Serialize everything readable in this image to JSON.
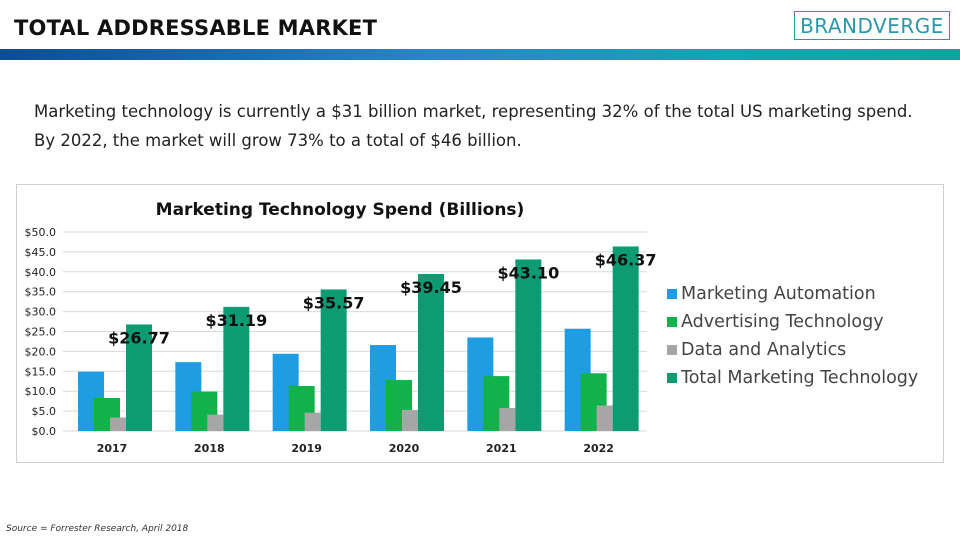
{
  "header": {
    "title": "TOTAL ADDRESSABLE MARKET",
    "logo_text": "BRANDVERGE",
    "accent_color": "#12a39d"
  },
  "summary": "Marketing technology is currently a $31 billion market, representing 32% of the total US marketing spend. By 2022, the market will grow 73% to a total of $46 billion.",
  "source": "Source = Forrester Research, April 2018",
  "chart_data": {
    "type": "bar",
    "title": "Marketing Technology Spend (Billions)",
    "xlabel": "",
    "ylabel": "",
    "categories": [
      "2017",
      "2018",
      "2019",
      "2020",
      "2021",
      "2022"
    ],
    "ylim": [
      0,
      50
    ],
    "yticks": [
      "$0.0",
      "$5.0",
      "$10.0",
      "$15.0",
      "$20.0",
      "$25.0",
      "$30.0",
      "$35.0",
      "$40.0",
      "$45.0",
      "$50.0"
    ],
    "grid": true,
    "legend_position": "right",
    "series": [
      {
        "name": "Marketing Automation",
        "color": "#1f9de2",
        "values": [
          14.9,
          17.3,
          19.4,
          21.6,
          23.5,
          25.7
        ]
      },
      {
        "name": "Advertising Technology",
        "color": "#12b24b",
        "values": [
          8.3,
          9.9,
          11.3,
          12.8,
          13.8,
          14.5
        ]
      },
      {
        "name": "Data and Analytics",
        "color": "#a6a6a6",
        "values": [
          3.4,
          4.1,
          4.6,
          5.3,
          5.8,
          6.4
        ]
      },
      {
        "name": "Total Marketing Technology",
        "color": "#0d9b74",
        "values": [
          26.77,
          31.19,
          35.57,
          39.45,
          43.1,
          46.37
        ]
      }
    ],
    "data_labels": [
      "$26.77",
      "$31.19",
      "$35.57",
      "$39.45",
      "$43.10",
      "$46.37"
    ]
  }
}
